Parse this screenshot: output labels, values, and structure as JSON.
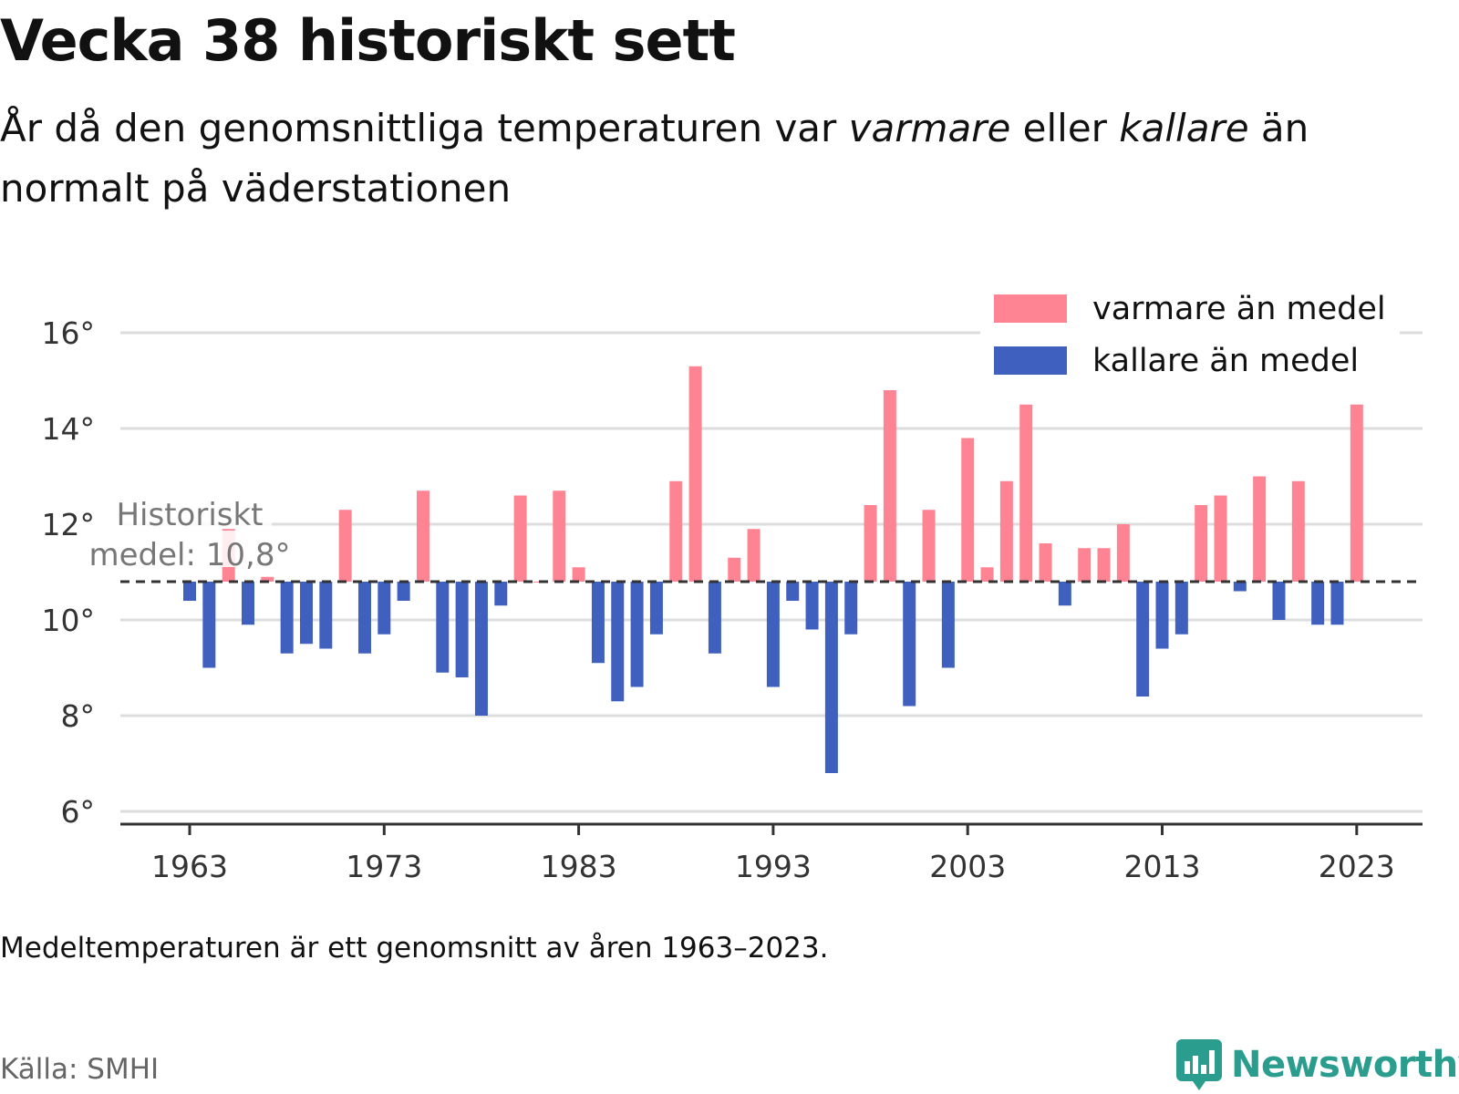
{
  "header": {
    "title": "Vecka 38 historiskt sett",
    "subtitle_part1": "År då den genomsnittliga temperaturen var ",
    "subtitle_warm": "varmare",
    "subtitle_part2": " eller ",
    "subtitle_cold": "kallare",
    "subtitle_part3": " än normalt på väderstationen"
  },
  "footer": {
    "note": "Medeltemperaturen är ett genomsnitt av åren 1963–2023.",
    "source": "Källa: SMHI",
    "brand": "Newsworthy"
  },
  "colors": {
    "warm": "#ff8493",
    "cold": "#3f60be",
    "brand": "#2a9d8f"
  },
  "chart_data": {
    "type": "bar",
    "title": "",
    "xlabel": "",
    "ylabel": "",
    "ylim": [
      6,
      16
    ],
    "y_ticks": [
      6,
      8,
      10,
      12,
      14,
      16
    ],
    "y_tick_labels": [
      "6°",
      "8°",
      "10°",
      "12°",
      "14°",
      "16°"
    ],
    "x_ticks": [
      1963,
      1973,
      1983,
      1993,
      2003,
      2013,
      2023
    ],
    "x_tick_labels": [
      "1963",
      "1973",
      "1983",
      "1993",
      "2003",
      "2013",
      "2023"
    ],
    "baseline": 10.8,
    "baseline_label_line1": "Historiskt",
    "baseline_label_line2": "medel: 10,8°",
    "legend": [
      "varmare än medel",
      "kallare än medel"
    ],
    "legend_position": "top-right",
    "grid": true,
    "years": [
      1963,
      1964,
      1965,
      1966,
      1967,
      1968,
      1969,
      1970,
      1971,
      1972,
      1973,
      1974,
      1975,
      1976,
      1977,
      1978,
      1979,
      1980,
      1981,
      1982,
      1983,
      1984,
      1985,
      1986,
      1987,
      1988,
      1989,
      1990,
      1991,
      1992,
      1993,
      1994,
      1995,
      1996,
      1997,
      1998,
      1999,
      2000,
      2001,
      2002,
      2003,
      2004,
      2005,
      2006,
      2007,
      2008,
      2009,
      2010,
      2011,
      2012,
      2013,
      2014,
      2015,
      2016,
      2017,
      2018,
      2019,
      2020,
      2021,
      2022,
      2023
    ],
    "values": [
      10.4,
      9.0,
      11.9,
      9.9,
      10.9,
      9.3,
      9.5,
      9.4,
      12.3,
      9.3,
      9.7,
      10.4,
      12.7,
      8.9,
      8.8,
      8.0,
      10.3,
      12.6,
      10.8,
      12.7,
      11.1,
      9.1,
      8.3,
      8.6,
      9.7,
      12.9,
      15.3,
      9.3,
      11.3,
      11.9,
      8.6,
      10.4,
      9.8,
      6.8,
      9.7,
      12.4,
      14.8,
      8.2,
      12.3,
      9.0,
      13.8,
      11.1,
      12.9,
      14.5,
      11.6,
      10.3,
      11.5,
      11.5,
      12.0,
      8.4,
      9.4,
      9.7,
      12.4,
      12.6,
      10.6,
      13.0,
      10.0,
      12.9,
      9.9,
      9.9,
      14.5
    ]
  }
}
